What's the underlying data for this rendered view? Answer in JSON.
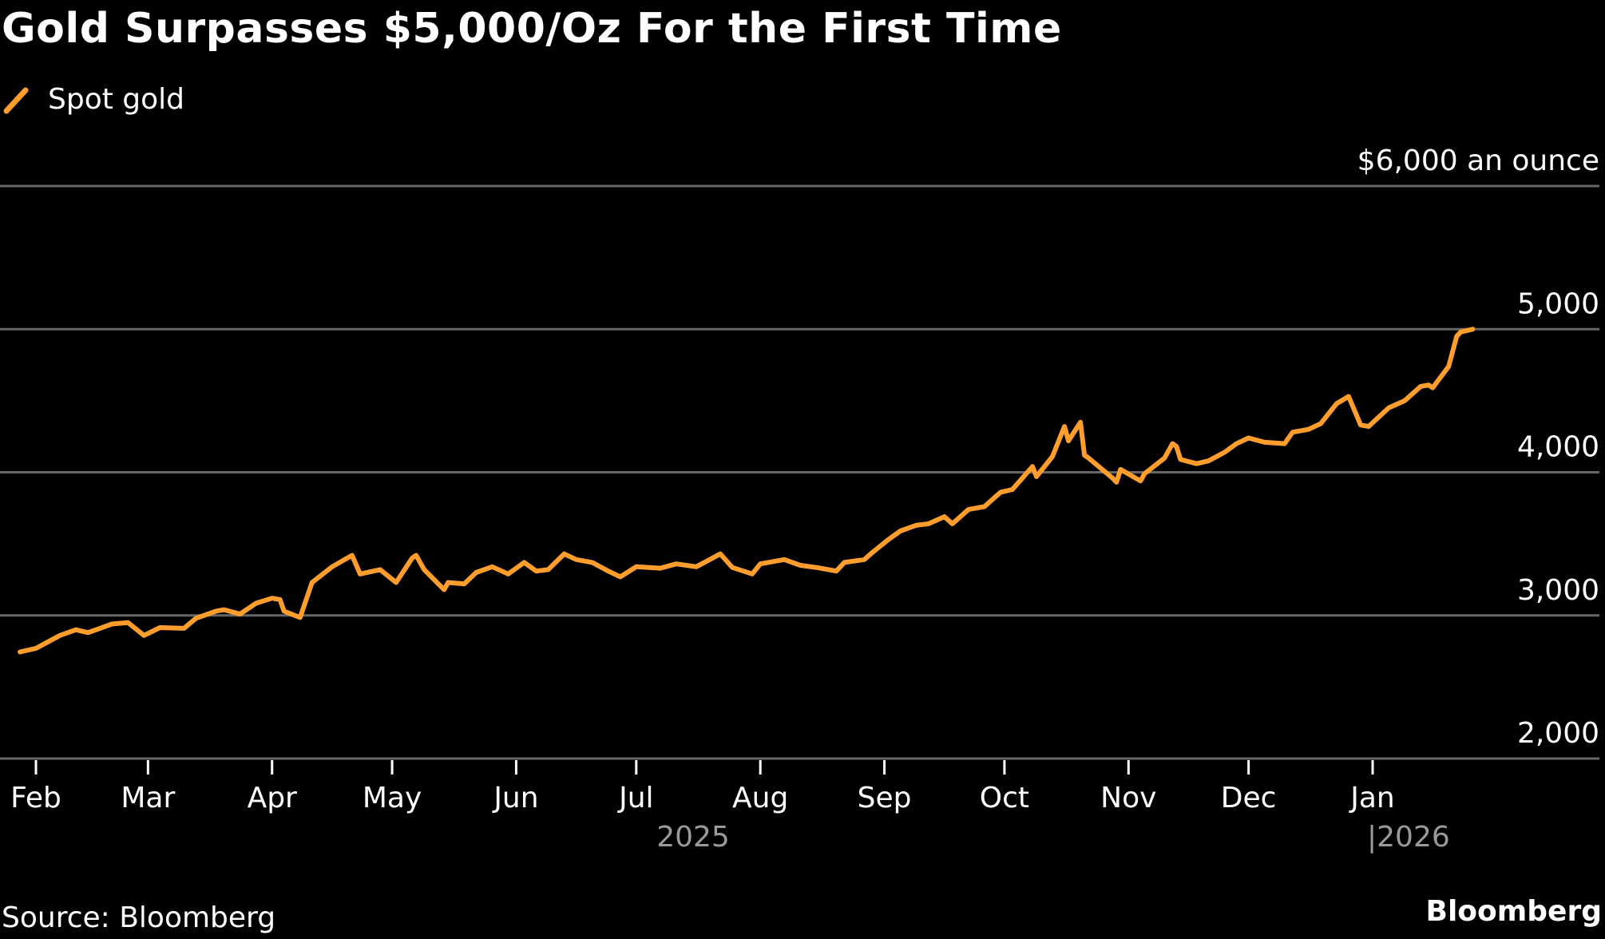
{
  "title": "Gold Surpasses $5,000/Oz For the First Time",
  "source": "Source: Bloomberg",
  "brand": "Bloomberg",
  "colors": {
    "line": "#FF9E2C",
    "grid": "#666666",
    "background": "#000000",
    "year": "#9a9a9a"
  },
  "chart_data": {
    "type": "line",
    "title": "Gold Surpasses $5,000/Oz For the First Time",
    "legend": [
      {
        "name": "Spot gold",
        "color": "#FF9E2C"
      }
    ],
    "ylabel": "$6,000 an ounce",
    "ylim": [
      2000,
      6000
    ],
    "yticks": [
      2000,
      3000,
      4000,
      5000,
      6000
    ],
    "ytick_labels": [
      "2,000",
      "3,000",
      "4,000",
      "5,000",
      "$6,000 an ounce"
    ],
    "grid": true,
    "xticks": [
      {
        "date": "2025-02-01",
        "label": "Feb"
      },
      {
        "date": "2025-03-01",
        "label": "Mar"
      },
      {
        "date": "2025-04-01",
        "label": "Apr"
      },
      {
        "date": "2025-05-01",
        "label": "May"
      },
      {
        "date": "2025-06-01",
        "label": "Jun"
      },
      {
        "date": "2025-07-01",
        "label": "Jul"
      },
      {
        "date": "2025-08-01",
        "label": "Aug"
      },
      {
        "date": "2025-09-01",
        "label": "Sep"
      },
      {
        "date": "2025-10-01",
        "label": "Oct"
      },
      {
        "date": "2025-11-01",
        "label": "Nov"
      },
      {
        "date": "2025-12-01",
        "label": "Dec"
      },
      {
        "date": "2026-01-01",
        "label": "Jan"
      }
    ],
    "year_labels": [
      "2025",
      "|2026"
    ],
    "series": [
      {
        "name": "Spot gold",
        "points": [
          [
            "2025-01-28",
            2745
          ],
          [
            "2025-02-01",
            2770
          ],
          [
            "2025-02-07",
            2860
          ],
          [
            "2025-02-11",
            2900
          ],
          [
            "2025-02-14",
            2880
          ],
          [
            "2025-02-20",
            2940
          ],
          [
            "2025-02-24",
            2950
          ],
          [
            "2025-02-28",
            2860
          ],
          [
            "2025-03-04",
            2915
          ],
          [
            "2025-03-10",
            2910
          ],
          [
            "2025-03-13",
            2980
          ],
          [
            "2025-03-18",
            3030
          ],
          [
            "2025-03-20",
            3040
          ],
          [
            "2025-03-24",
            3010
          ],
          [
            "2025-03-28",
            3085
          ],
          [
            "2025-04-01",
            3120
          ],
          [
            "2025-04-03",
            3110
          ],
          [
            "2025-04-04",
            3030
          ],
          [
            "2025-04-08",
            2985
          ],
          [
            "2025-04-11",
            3230
          ],
          [
            "2025-04-16",
            3340
          ],
          [
            "2025-04-21",
            3420
          ],
          [
            "2025-04-23",
            3290
          ],
          [
            "2025-04-28",
            3320
          ],
          [
            "2025-05-02",
            3230
          ],
          [
            "2025-05-06",
            3400
          ],
          [
            "2025-05-07",
            3420
          ],
          [
            "2025-05-09",
            3320
          ],
          [
            "2025-05-14",
            3180
          ],
          [
            "2025-05-15",
            3230
          ],
          [
            "2025-05-19",
            3220
          ],
          [
            "2025-05-22",
            3300
          ],
          [
            "2025-05-26",
            3340
          ],
          [
            "2025-05-30",
            3290
          ],
          [
            "2025-06-03",
            3370
          ],
          [
            "2025-06-06",
            3310
          ],
          [
            "2025-06-09",
            3320
          ],
          [
            "2025-06-13",
            3430
          ],
          [
            "2025-06-16",
            3390
          ],
          [
            "2025-06-20",
            3370
          ],
          [
            "2025-06-24",
            3310
          ],
          [
            "2025-06-27",
            3270
          ],
          [
            "2025-07-01",
            3340
          ],
          [
            "2025-07-07",
            3330
          ],
          [
            "2025-07-11",
            3360
          ],
          [
            "2025-07-16",
            3340
          ],
          [
            "2025-07-22",
            3430
          ],
          [
            "2025-07-25",
            3335
          ],
          [
            "2025-07-30",
            3290
          ],
          [
            "2025-08-01",
            3360
          ],
          [
            "2025-08-07",
            3390
          ],
          [
            "2025-08-11",
            3350
          ],
          [
            "2025-08-15",
            3335
          ],
          [
            "2025-08-20",
            3310
          ],
          [
            "2025-08-22",
            3370
          ],
          [
            "2025-08-27",
            3390
          ],
          [
            "2025-08-29",
            3440
          ],
          [
            "2025-09-02",
            3530
          ],
          [
            "2025-09-05",
            3590
          ],
          [
            "2025-09-09",
            3630
          ],
          [
            "2025-09-12",
            3640
          ],
          [
            "2025-09-16",
            3690
          ],
          [
            "2025-09-18",
            3640
          ],
          [
            "2025-09-22",
            3740
          ],
          [
            "2025-09-26",
            3760
          ],
          [
            "2025-09-30",
            3860
          ],
          [
            "2025-10-03",
            3880
          ],
          [
            "2025-10-08",
            4040
          ],
          [
            "2025-10-09",
            3970
          ],
          [
            "2025-10-13",
            4110
          ],
          [
            "2025-10-16",
            4320
          ],
          [
            "2025-10-17",
            4220
          ],
          [
            "2025-10-20",
            4350
          ],
          [
            "2025-10-21",
            4120
          ],
          [
            "2025-10-22",
            4100
          ],
          [
            "2025-10-28",
            3960
          ],
          [
            "2025-10-29",
            3930
          ],
          [
            "2025-10-30",
            4020
          ],
          [
            "2025-11-04",
            3940
          ],
          [
            "2025-11-05",
            3990
          ],
          [
            "2025-11-10",
            4100
          ],
          [
            "2025-11-12",
            4200
          ],
          [
            "2025-11-13",
            4180
          ],
          [
            "2025-11-14",
            4090
          ],
          [
            "2025-11-18",
            4060
          ],
          [
            "2025-11-21",
            4080
          ],
          [
            "2025-11-25",
            4140
          ],
          [
            "2025-11-28",
            4200
          ],
          [
            "2025-12-01",
            4240
          ],
          [
            "2025-12-05",
            4210
          ],
          [
            "2025-12-10",
            4200
          ],
          [
            "2025-12-12",
            4280
          ],
          [
            "2025-12-16",
            4300
          ],
          [
            "2025-12-19",
            4340
          ],
          [
            "2025-12-23",
            4480
          ],
          [
            "2025-12-26",
            4530
          ],
          [
            "2025-12-29",
            4330
          ],
          [
            "2025-12-31",
            4320
          ],
          [
            "2026-01-05",
            4450
          ],
          [
            "2026-01-09",
            4500
          ],
          [
            "2026-01-13",
            4600
          ],
          [
            "2026-01-15",
            4610
          ],
          [
            "2026-01-16",
            4590
          ],
          [
            "2026-01-20",
            4740
          ],
          [
            "2026-01-22",
            4950
          ],
          [
            "2026-01-23",
            4980
          ],
          [
            "2026-01-26",
            5000
          ]
        ]
      }
    ]
  }
}
